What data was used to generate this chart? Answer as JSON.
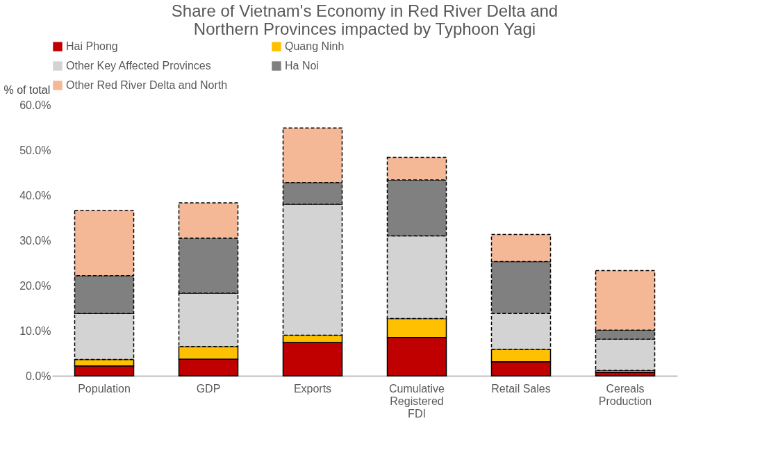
{
  "chart_data": {
    "type": "bar",
    "title": [
      "Share of Vietnam's Economy in Red River Delta and",
      "Northern Provinces impacted by Typhoon Yagi"
    ],
    "ylabel": "% of total",
    "categories": [
      "Population",
      "GDP",
      "Exports",
      "Cumulative Registered FDI",
      "Retail Sales",
      "Cereals Production"
    ],
    "stacked": true,
    "legend": "top",
    "grid": false,
    "ylim": [
      0,
      60
    ],
    "yticks": [
      {
        "value": 0,
        "label": "0.0%"
      },
      {
        "value": 10,
        "label": "10.0%"
      },
      {
        "value": 20,
        "label": "20.0%"
      },
      {
        "value": 30,
        "label": "30.0%"
      },
      {
        "value": 40,
        "label": "40.0%"
      },
      {
        "value": 50,
        "label": "50.0%"
      },
      {
        "value": 60,
        "label": "60.0%"
      }
    ],
    "series": [
      {
        "name": "Hai Phong",
        "color": "#c00000",
        "line_style": "solid",
        "values": [
          2.2,
          3.7,
          7.4,
          8.5,
          3.1,
          0.8
        ]
      },
      {
        "name": "Quang Ninh",
        "color": "#ffc000",
        "line_style": "solid",
        "values": [
          1.4,
          2.8,
          1.6,
          4.2,
          2.8,
          0.4
        ]
      },
      {
        "name": "Other Key Affected Provinces",
        "color": "#d3d3d3",
        "line_style": "dashed",
        "values": [
          10.2,
          11.8,
          29.0,
          18.3,
          7.9,
          6.9
        ]
      },
      {
        "name": "Ha Noi",
        "color": "#808080",
        "line_style": "dashed",
        "values": [
          8.4,
          12.2,
          4.8,
          12.4,
          11.5,
          2.0
        ]
      },
      {
        "name": "Other Red River Delta and North",
        "color": "#f4b897",
        "line_style": "dashed",
        "values": [
          14.4,
          7.8,
          12.1,
          5.0,
          6.0,
          13.2
        ]
      }
    ]
  }
}
